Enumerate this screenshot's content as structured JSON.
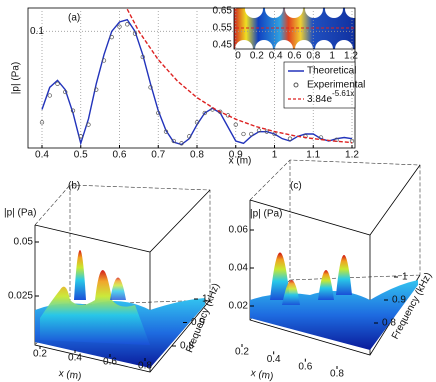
{
  "chart_data": [
    {
      "type": "line",
      "panel_label": "(a)",
      "x_label": "x (m)",
      "y_label": "|p| (Pa)",
      "xlim": [
        0.4,
        1.2
      ],
      "xticks": [
        0.4,
        0.5,
        0.6,
        0.7,
        0.8,
        0.9,
        1,
        1.1,
        1.2
      ],
      "ylim": [
        0,
        0.12
      ],
      "yticks": [
        0.1
      ],
      "grid": true,
      "series": [
        {
          "name": "Theoretical",
          "kind": "line",
          "color": "#2233bb",
          "x": [
            0.4,
            0.42,
            0.44,
            0.46,
            0.48,
            0.5,
            0.52,
            0.54,
            0.56,
            0.58,
            0.6,
            0.62,
            0.64,
            0.66,
            0.68,
            0.7,
            0.72,
            0.74,
            0.76,
            0.78,
            0.8,
            0.82,
            0.84,
            0.86,
            0.88,
            0.9,
            0.92,
            0.94,
            0.96,
            0.98,
            1.0,
            1.02,
            1.04,
            1.06,
            1.08,
            1.1,
            1.12,
            1.14,
            1.16,
            1.18,
            1.2
          ],
          "values": [
            0.033,
            0.052,
            0.058,
            0.05,
            0.03,
            0.004,
            0.025,
            0.055,
            0.08,
            0.1,
            0.108,
            0.11,
            0.1,
            0.08,
            0.055,
            0.032,
            0.015,
            0.005,
            0.003,
            0.008,
            0.02,
            0.03,
            0.034,
            0.03,
            0.018,
            0.006,
            0.004,
            0.01,
            0.014,
            0.014,
            0.012,
            0.008,
            0.006,
            0.01,
            0.012,
            0.012,
            0.008,
            0.006,
            0.008,
            0.009,
            0.008
          ]
        },
        {
          "name": "Experimental",
          "kind": "scatter",
          "color": "#555555",
          "x": [
            0.4,
            0.42,
            0.44,
            0.46,
            0.48,
            0.5,
            0.52,
            0.54,
            0.56,
            0.58,
            0.6,
            0.62,
            0.64,
            0.66,
            0.68,
            0.7,
            0.72,
            0.74,
            0.76,
            0.78,
            0.8,
            0.82,
            0.84,
            0.86,
            0.88,
            0.9,
            0.92,
            0.94,
            0.96,
            0.98,
            1.0,
            1.04,
            1.08,
            1.12,
            1.16,
            1.2
          ],
          "values": [
            0.022,
            0.045,
            0.055,
            0.048,
            0.032,
            0.01,
            0.02,
            0.05,
            0.075,
            0.095,
            0.104,
            0.106,
            0.098,
            0.078,
            0.052,
            0.03,
            0.014,
            0.006,
            0.004,
            0.01,
            0.022,
            0.03,
            0.033,
            0.031,
            0.028,
            0.02,
            0.012,
            0.012,
            0.015,
            0.014,
            0.012,
            0.008,
            0.01,
            0.009,
            0.007,
            0.006
          ]
        },
        {
          "name": "3.84e",
          "name_exponent": "-5.61x",
          "kind": "dashed",
          "color": "#dd2222",
          "x": [
            0.62,
            0.65,
            0.7,
            0.75,
            0.8,
            0.85,
            0.9,
            0.95,
            1.0,
            1.05,
            1.1,
            1.15,
            1.2
          ],
          "values": [
            0.119,
            0.1,
            0.0757,
            0.0572,
            0.0432,
            0.0326,
            0.0247,
            0.0186,
            0.0141,
            0.0106,
            0.008,
            0.0061,
            0.0046
          ]
        }
      ],
      "inset": {
        "xticks": [
          0,
          0.2,
          0.4,
          0.6,
          0.8,
          1,
          1.2
        ],
        "yticks": [
          0.65,
          0.55,
          0.45
        ]
      }
    },
    {
      "type": "surface",
      "panel_label": "(b)",
      "x_label": "x (m)",
      "y_label": "Frequency (kHz)",
      "z_label": "|p| (Pa)",
      "xticks": [
        0.2,
        0.4,
        0.6,
        0.8
      ],
      "yticks": [
        0.8,
        0.9,
        1
      ],
      "zticks": [
        0.025,
        0.05
      ]
    },
    {
      "type": "surface",
      "panel_label": "(c)",
      "x_label": "x (m)",
      "y_label": "Frequency (kHz)",
      "z_label": "|p| (Pa)",
      "xticks": [
        0.2,
        0.4,
        0.6,
        0.8
      ],
      "yticks": [
        0.8,
        0.9,
        1
      ],
      "zticks": [
        0.02,
        0.04,
        0.06
      ]
    }
  ]
}
